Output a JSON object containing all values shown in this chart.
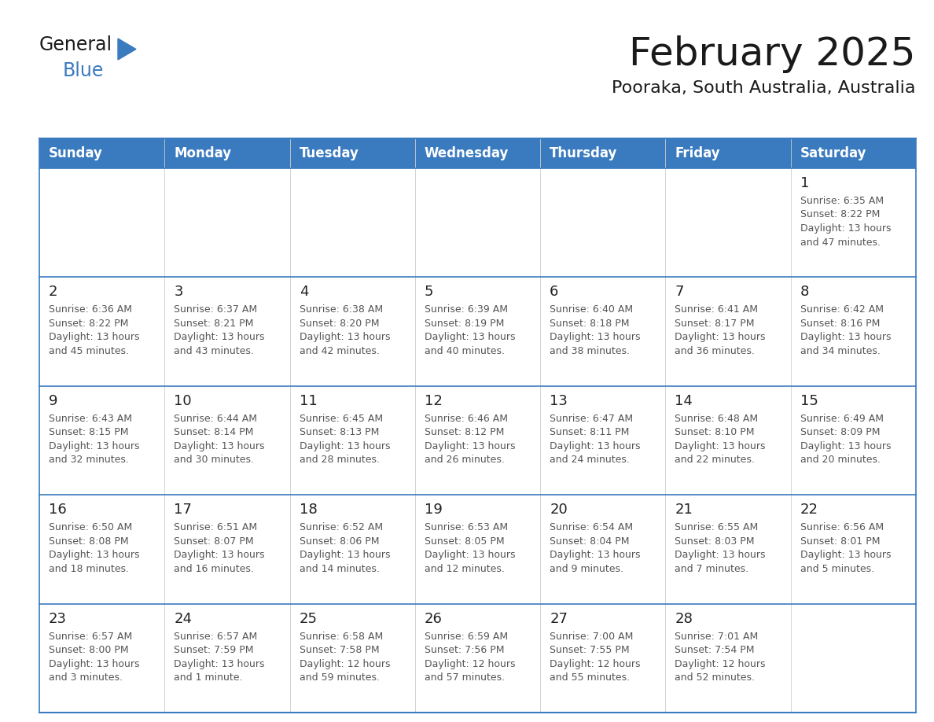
{
  "title": "February 2025",
  "subtitle": "Pooraka, South Australia, Australia",
  "header_bg": "#3a7abf",
  "header_text": "#ffffff",
  "cell_bg": "#ffffff",
  "border_color": "#3a7abf",
  "day_names": [
    "Sunday",
    "Monday",
    "Tuesday",
    "Wednesday",
    "Thursday",
    "Friday",
    "Saturday"
  ],
  "weeks": [
    [
      {
        "day": "",
        "info": ""
      },
      {
        "day": "",
        "info": ""
      },
      {
        "day": "",
        "info": ""
      },
      {
        "day": "",
        "info": ""
      },
      {
        "day": "",
        "info": ""
      },
      {
        "day": "",
        "info": ""
      },
      {
        "day": "1",
        "info": "Sunrise: 6:35 AM\nSunset: 8:22 PM\nDaylight: 13 hours\nand 47 minutes."
      }
    ],
    [
      {
        "day": "2",
        "info": "Sunrise: 6:36 AM\nSunset: 8:22 PM\nDaylight: 13 hours\nand 45 minutes."
      },
      {
        "day": "3",
        "info": "Sunrise: 6:37 AM\nSunset: 8:21 PM\nDaylight: 13 hours\nand 43 minutes."
      },
      {
        "day": "4",
        "info": "Sunrise: 6:38 AM\nSunset: 8:20 PM\nDaylight: 13 hours\nand 42 minutes."
      },
      {
        "day": "5",
        "info": "Sunrise: 6:39 AM\nSunset: 8:19 PM\nDaylight: 13 hours\nand 40 minutes."
      },
      {
        "day": "6",
        "info": "Sunrise: 6:40 AM\nSunset: 8:18 PM\nDaylight: 13 hours\nand 38 minutes."
      },
      {
        "day": "7",
        "info": "Sunrise: 6:41 AM\nSunset: 8:17 PM\nDaylight: 13 hours\nand 36 minutes."
      },
      {
        "day": "8",
        "info": "Sunrise: 6:42 AM\nSunset: 8:16 PM\nDaylight: 13 hours\nand 34 minutes."
      }
    ],
    [
      {
        "day": "9",
        "info": "Sunrise: 6:43 AM\nSunset: 8:15 PM\nDaylight: 13 hours\nand 32 minutes."
      },
      {
        "day": "10",
        "info": "Sunrise: 6:44 AM\nSunset: 8:14 PM\nDaylight: 13 hours\nand 30 minutes."
      },
      {
        "day": "11",
        "info": "Sunrise: 6:45 AM\nSunset: 8:13 PM\nDaylight: 13 hours\nand 28 minutes."
      },
      {
        "day": "12",
        "info": "Sunrise: 6:46 AM\nSunset: 8:12 PM\nDaylight: 13 hours\nand 26 minutes."
      },
      {
        "day": "13",
        "info": "Sunrise: 6:47 AM\nSunset: 8:11 PM\nDaylight: 13 hours\nand 24 minutes."
      },
      {
        "day": "14",
        "info": "Sunrise: 6:48 AM\nSunset: 8:10 PM\nDaylight: 13 hours\nand 22 minutes."
      },
      {
        "day": "15",
        "info": "Sunrise: 6:49 AM\nSunset: 8:09 PM\nDaylight: 13 hours\nand 20 minutes."
      }
    ],
    [
      {
        "day": "16",
        "info": "Sunrise: 6:50 AM\nSunset: 8:08 PM\nDaylight: 13 hours\nand 18 minutes."
      },
      {
        "day": "17",
        "info": "Sunrise: 6:51 AM\nSunset: 8:07 PM\nDaylight: 13 hours\nand 16 minutes."
      },
      {
        "day": "18",
        "info": "Sunrise: 6:52 AM\nSunset: 8:06 PM\nDaylight: 13 hours\nand 14 minutes."
      },
      {
        "day": "19",
        "info": "Sunrise: 6:53 AM\nSunset: 8:05 PM\nDaylight: 13 hours\nand 12 minutes."
      },
      {
        "day": "20",
        "info": "Sunrise: 6:54 AM\nSunset: 8:04 PM\nDaylight: 13 hours\nand 9 minutes."
      },
      {
        "day": "21",
        "info": "Sunrise: 6:55 AM\nSunset: 8:03 PM\nDaylight: 13 hours\nand 7 minutes."
      },
      {
        "day": "22",
        "info": "Sunrise: 6:56 AM\nSunset: 8:01 PM\nDaylight: 13 hours\nand 5 minutes."
      }
    ],
    [
      {
        "day": "23",
        "info": "Sunrise: 6:57 AM\nSunset: 8:00 PM\nDaylight: 13 hours\nand 3 minutes."
      },
      {
        "day": "24",
        "info": "Sunrise: 6:57 AM\nSunset: 7:59 PM\nDaylight: 13 hours\nand 1 minute."
      },
      {
        "day": "25",
        "info": "Sunrise: 6:58 AM\nSunset: 7:58 PM\nDaylight: 12 hours\nand 59 minutes."
      },
      {
        "day": "26",
        "info": "Sunrise: 6:59 AM\nSunset: 7:56 PM\nDaylight: 12 hours\nand 57 minutes."
      },
      {
        "day": "27",
        "info": "Sunrise: 7:00 AM\nSunset: 7:55 PM\nDaylight: 12 hours\nand 55 minutes."
      },
      {
        "day": "28",
        "info": "Sunrise: 7:01 AM\nSunset: 7:54 PM\nDaylight: 12 hours\nand 52 minutes."
      },
      {
        "day": "",
        "info": ""
      }
    ]
  ],
  "title_fontsize": 36,
  "subtitle_fontsize": 16,
  "header_fontsize": 12,
  "day_num_fontsize": 13,
  "info_fontsize": 9,
  "logo_fontsize_general": 17,
  "logo_fontsize_blue": 17
}
